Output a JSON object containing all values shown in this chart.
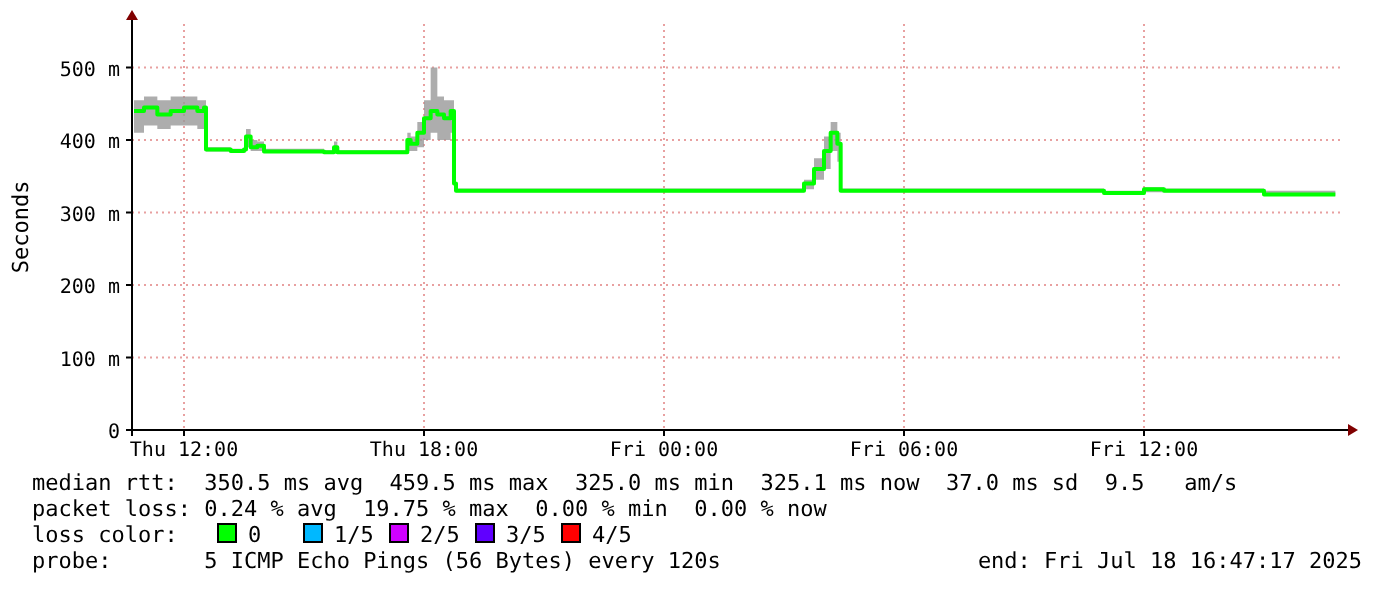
{
  "chart_data": {
    "type": "step",
    "ylabel": "Seconds",
    "legend_title": "loss color:",
    "legend": "bottom",
    "grid": true,
    "xlim": [
      "2025-07-17T10:42",
      "2025-07-18T16:54"
    ],
    "xticks": [
      {
        "value": "2025-07-17T12:00",
        "label": "Thu 12:00"
      },
      {
        "value": "2025-07-17T18:00",
        "label": "Thu 18:00"
      },
      {
        "value": "2025-07-18T00:00",
        "label": "Fri 00:00"
      },
      {
        "value": "2025-07-18T06:00",
        "label": "Fri 06:00"
      },
      {
        "value": "2025-07-18T12:00",
        "label": "Fri 12:00"
      }
    ],
    "ylim": [
      0,
      560
    ],
    "yticks": [
      0,
      {
        "value": 100,
        "label": "100 m"
      },
      {
        "value": 200,
        "label": "200 m"
      },
      {
        "value": 300,
        "label": "300 m"
      },
      {
        "value": 400,
        "label": "400 m"
      },
      {
        "value": 500,
        "label": "500 m"
      }
    ],
    "x": [
      "2025-07-17T10:45",
      "2025-07-17T11:00",
      "2025-07-17T11:20",
      "2025-07-17T11:40",
      "2025-07-17T12:00",
      "2025-07-17T12:20",
      "2025-07-17T12:30",
      "2025-07-17T12:33",
      "2025-07-17T13:10",
      "2025-07-17T13:30",
      "2025-07-17T13:33",
      "2025-07-17T13:40",
      "2025-07-17T13:50",
      "2025-07-17T14:00",
      "2025-07-17T15:30",
      "2025-07-17T15:45",
      "2025-07-17T15:50",
      "2025-07-17T17:30",
      "2025-07-17T17:35",
      "2025-07-17T17:40",
      "2025-07-17T17:50",
      "2025-07-17T18:00",
      "2025-07-17T18:10",
      "2025-07-17T18:20",
      "2025-07-17T18:30",
      "2025-07-17T18:40",
      "2025-07-17T18:45",
      "2025-07-17T18:48",
      "2025-07-18T03:20",
      "2025-07-18T03:30",
      "2025-07-18T03:45",
      "2025-07-18T04:00",
      "2025-07-18T04:10",
      "2025-07-18T04:20",
      "2025-07-18T04:25",
      "2025-07-18T09:00",
      "2025-07-18T11:00",
      "2025-07-18T12:00",
      "2025-07-18T12:30",
      "2025-07-18T14:30",
      "2025-07-18T15:00",
      "2025-07-18T16:47"
    ],
    "series": [
      {
        "name": "0",
        "color": "#00ff00",
        "values": [
          440,
          445,
          435,
          440,
          445,
          440,
          445,
          387,
          385,
          387,
          405,
          390,
          392,
          384,
          383,
          390,
          383,
          383,
          400,
          395,
          410,
          430,
          440,
          435,
          430,
          440,
          340,
          330,
          330,
          340,
          360,
          385,
          410,
          395,
          330,
          330,
          327,
          332,
          330,
          330,
          325,
          325
        ],
        "lower": [
          410,
          420,
          415,
          420,
          420,
          415,
          420,
          384,
          382,
          383,
          390,
          385,
          385,
          382,
          381,
          383,
          381,
          381,
          385,
          385,
          390,
          400,
          410,
          400,
          400,
          410,
          335,
          328,
          328,
          332,
          345,
          360,
          385,
          370,
          328,
          328,
          325,
          328,
          328,
          328,
          323,
          323
        ],
        "upper": [
          455,
          460,
          455,
          460,
          460,
          455,
          455,
          390,
          388,
          392,
          415,
          400,
          398,
          388,
          386,
          398,
          386,
          386,
          410,
          405,
          425,
          455,
          500,
          460,
          455,
          455,
          350,
          333,
          333,
          345,
          375,
          405,
          425,
          410,
          333,
          333,
          330,
          335,
          333,
          333,
          330,
          330
        ]
      },
      {
        "name": "1/5",
        "color": "#00b8ff",
        "values": [
          null,
          null,
          null,
          null,
          null,
          null,
          null,
          null,
          null,
          null,
          null,
          null,
          null,
          null,
          null,
          null,
          null,
          null,
          null,
          null,
          null,
          null,
          null,
          null,
          null,
          null,
          null,
          null,
          null,
          null,
          null,
          null,
          null,
          null,
          null,
          null,
          null,
          null,
          null,
          null,
          null,
          null
        ]
      },
      {
        "name": "2/5",
        "color": "#d000ff",
        "values": [
          null,
          null,
          null,
          null,
          null,
          null,
          null,
          null,
          null,
          null,
          null,
          null,
          null,
          null,
          null,
          null,
          null,
          null,
          null,
          null,
          null,
          null,
          null,
          null,
          null,
          null,
          null,
          null,
          null,
          null,
          null,
          null,
          null,
          null,
          null,
          null,
          null,
          null,
          null,
          null,
          null,
          null
        ]
      },
      {
        "name": "3/5",
        "color": "#6000ff",
        "values": [
          null,
          null,
          null,
          null,
          null,
          null,
          null,
          null,
          null,
          null,
          null,
          null,
          null,
          null,
          null,
          null,
          null,
          null,
          null,
          null,
          null,
          null,
          null,
          null,
          null,
          null,
          null,
          null,
          null,
          null,
          null,
          null,
          null,
          null,
          null,
          null,
          null,
          null,
          null,
          null,
          null,
          null
        ]
      },
      {
        "name": "4/5",
        "color": "#ff0000",
        "values": [
          null,
          null,
          null,
          null,
          null,
          null,
          null,
          null,
          null,
          null,
          null,
          null,
          null,
          null,
          null,
          null,
          null,
          null,
          null,
          null,
          null,
          null,
          null,
          null,
          null,
          null,
          null,
          null,
          null,
          null,
          null,
          null,
          null,
          null,
          null,
          null,
          null,
          null,
          null,
          null,
          null,
          null
        ]
      }
    ],
    "annotations": [
      "median rtt:  350.5 ms avg  459.5 ms max  325.0 ms min  325.1 ms now  37.0 ms sd  9.5   am/s",
      "packet loss: 0.24 % avg  19.75 % max  0.00 % min  0.00 % now",
      "probe:       5 ICMP Echo Pings (56 Bytes) every 120s",
      "end: Fri Jul 18 16:47:17 2025"
    ]
  }
}
